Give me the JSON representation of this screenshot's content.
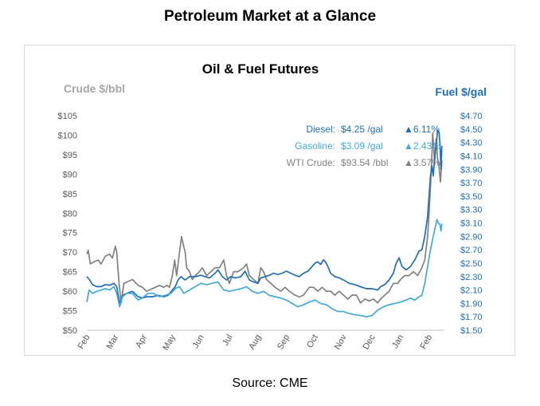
{
  "page": {
    "title": "Petroleum Market at a Glance",
    "source": "Source: CME"
  },
  "colors": {
    "crude": "#808080",
    "diesel": "#1f6eb5",
    "gasoline": "#41a9de",
    "axis": "#595959",
    "up_arrow_gray": "#808080"
  },
  "chart_data": {
    "type": "line",
    "title": "Oil & Fuel Futures",
    "left_axis": {
      "label": "Crude $/bbl",
      "min": 50,
      "max": 105,
      "step": 5,
      "ticks": [
        "$50",
        "$55",
        "$60",
        "$65",
        "$70",
        "$75",
        "$80",
        "$85",
        "$90",
        "$95",
        "$100",
        "$105"
      ]
    },
    "right_axis": {
      "label": "Fuel $/gal",
      "min": 1.5,
      "max": 4.7,
      "step": 0.2,
      "ticks": [
        "$1.50",
        "$1.70",
        "$1.90",
        "$2.10",
        "$2.30",
        "$2.50",
        "$2.70",
        "$2.90",
        "$3.10",
        "$3.30",
        "$3.50",
        "$3.70",
        "$3.90",
        "$4.10",
        "$4.30",
        "$4.50",
        "$4.70"
      ]
    },
    "x_axis": {
      "min": 0,
      "max": 12.4,
      "ticks": [
        {
          "label": "Feb",
          "month": 0
        },
        {
          "label": "Mar",
          "month": 1
        },
        {
          "label": "Apr",
          "month": 2
        },
        {
          "label": "May",
          "month": 3
        },
        {
          "label": "Jun",
          "month": 4
        },
        {
          "label": "Jul",
          "month": 5
        },
        {
          "label": "Aug",
          "month": 6
        },
        {
          "label": "Sep",
          "month": 7
        },
        {
          "label": "Oct",
          "month": 8
        },
        {
          "label": "Nov",
          "month": 9
        },
        {
          "label": "Dec",
          "month": 10
        },
        {
          "label": "Jan",
          "month": 11
        },
        {
          "label": "Feb",
          "month": 12
        }
      ]
    },
    "grid": false,
    "legend_position": "top-right",
    "annotations": [
      {
        "name": "Diesel:",
        "value": "$4.25 /gal",
        "change": "▲6.11%",
        "color": "#1f6eb5",
        "change_color": "#1f6eb5"
      },
      {
        "name": "Gasoline:",
        "value": "$3.09 /gal",
        "change": "▲2.43%",
        "color": "#41a9de",
        "change_color": "#41a9de"
      },
      {
        "name": "WTI Crude:",
        "value": "$93.54 /bbl",
        "change": "▲3.57%",
        "color": "#808080",
        "change_color": "#808080"
      }
    ],
    "series": [
      {
        "key": "crude",
        "axis": "left",
        "color": "#808080",
        "points": [
          [
            0,
            69.5
          ],
          [
            0.05,
            70.5
          ],
          [
            0.12,
            67
          ],
          [
            0.25,
            67.5
          ],
          [
            0.4,
            68
          ],
          [
            0.5,
            67
          ],
          [
            0.65,
            69
          ],
          [
            0.8,
            69.5
          ],
          [
            0.9,
            68.5
          ],
          [
            1.0,
            71.5
          ],
          [
            1.05,
            70
          ],
          [
            1.12,
            63
          ],
          [
            1.2,
            57
          ],
          [
            1.3,
            62
          ],
          [
            1.45,
            62.5
          ],
          [
            1.6,
            63
          ],
          [
            1.8,
            61.5
          ],
          [
            1.95,
            61
          ],
          [
            2.1,
            60
          ],
          [
            2.25,
            60.5
          ],
          [
            2.4,
            61
          ],
          [
            2.55,
            61.5
          ],
          [
            2.7,
            61
          ],
          [
            2.8,
            61.5
          ],
          [
            2.9,
            61
          ],
          [
            3.0,
            64
          ],
          [
            3.08,
            68
          ],
          [
            3.15,
            64
          ],
          [
            3.25,
            70
          ],
          [
            3.32,
            74
          ],
          [
            3.38,
            72
          ],
          [
            3.45,
            70
          ],
          [
            3.5,
            66
          ],
          [
            3.6,
            65
          ],
          [
            3.7,
            63
          ],
          [
            3.8,
            64
          ],
          [
            3.95,
            65
          ],
          [
            4.05,
            66
          ],
          [
            4.2,
            64
          ],
          [
            4.35,
            65
          ],
          [
            4.5,
            66
          ],
          [
            4.65,
            66
          ],
          [
            4.8,
            68
          ],
          [
            4.9,
            64
          ],
          [
            5.0,
            62
          ],
          [
            5.15,
            65
          ],
          [
            5.3,
            65
          ],
          [
            5.5,
            66
          ],
          [
            5.6,
            67
          ],
          [
            5.7,
            64
          ],
          [
            5.85,
            63
          ],
          [
            6.0,
            62
          ],
          [
            6.1,
            66
          ],
          [
            6.2,
            65
          ],
          [
            6.3,
            63
          ],
          [
            6.45,
            62
          ],
          [
            6.6,
            61
          ],
          [
            6.8,
            60
          ],
          [
            6.95,
            61
          ],
          [
            7.1,
            60
          ],
          [
            7.3,
            59
          ],
          [
            7.45,
            58.5
          ],
          [
            7.6,
            59
          ],
          [
            7.8,
            61
          ],
          [
            7.95,
            61
          ],
          [
            8.1,
            60
          ],
          [
            8.25,
            61
          ],
          [
            8.4,
            60
          ],
          [
            8.55,
            60
          ],
          [
            8.7,
            59
          ],
          [
            8.85,
            60
          ],
          [
            9.0,
            59
          ],
          [
            9.15,
            58
          ],
          [
            9.3,
            59
          ],
          [
            9.45,
            59
          ],
          [
            9.6,
            57
          ],
          [
            9.75,
            58
          ],
          [
            9.9,
            57.5
          ],
          [
            10.05,
            58
          ],
          [
            10.2,
            57
          ],
          [
            10.3,
            58
          ],
          [
            10.45,
            59
          ],
          [
            10.6,
            60
          ],
          [
            10.75,
            62
          ],
          [
            10.9,
            62
          ],
          [
            11.0,
            63
          ],
          [
            11.15,
            64
          ],
          [
            11.3,
            64
          ],
          [
            11.45,
            65
          ],
          [
            11.6,
            64
          ],
          [
            11.75,
            66
          ],
          [
            11.85,
            68
          ],
          [
            11.95,
            74
          ],
          [
            12.0,
            80
          ],
          [
            12.05,
            87
          ],
          [
            12.1,
            95
          ],
          [
            12.13,
            100.5
          ],
          [
            12.17,
            96
          ],
          [
            12.2,
            93
          ],
          [
            12.25,
            99
          ],
          [
            12.3,
            94
          ],
          [
            12.35,
            92
          ],
          [
            12.4,
            88
          ],
          [
            12.45,
            93.5
          ]
        ]
      },
      {
        "key": "diesel",
        "axis": "right",
        "color": "#1f6eb5",
        "points": [
          [
            0,
            2.3
          ],
          [
            0.1,
            2.25
          ],
          [
            0.2,
            2.18
          ],
          [
            0.35,
            2.15
          ],
          [
            0.5,
            2.15
          ],
          [
            0.65,
            2.18
          ],
          [
            0.8,
            2.17
          ],
          [
            0.95,
            2.2
          ],
          [
            1.05,
            2.15
          ],
          [
            1.15,
            1.9
          ],
          [
            1.25,
            2.02
          ],
          [
            1.4,
            2.05
          ],
          [
            1.6,
            2.08
          ],
          [
            1.8,
            2.0
          ],
          [
            1.95,
            1.98
          ],
          [
            2.1,
            2.0
          ],
          [
            2.3,
            2.0
          ],
          [
            2.5,
            2.02
          ],
          [
            2.7,
            2.0
          ],
          [
            2.85,
            2.02
          ],
          [
            3.0,
            2.1
          ],
          [
            3.1,
            2.15
          ],
          [
            3.2,
            2.25
          ],
          [
            3.3,
            2.3
          ],
          [
            3.45,
            2.25
          ],
          [
            3.6,
            2.3
          ],
          [
            3.8,
            2.3
          ],
          [
            4.0,
            2.32
          ],
          [
            4.15,
            2.3
          ],
          [
            4.3,
            2.28
          ],
          [
            4.5,
            2.35
          ],
          [
            4.6,
            2.4
          ],
          [
            4.75,
            2.3
          ],
          [
            4.9,
            2.25
          ],
          [
            5.05,
            2.3
          ],
          [
            5.2,
            2.28
          ],
          [
            5.4,
            2.3
          ],
          [
            5.55,
            2.38
          ],
          [
            5.7,
            2.25
          ],
          [
            5.85,
            2.22
          ],
          [
            6.0,
            2.2
          ],
          [
            6.1,
            2.28
          ],
          [
            6.25,
            2.3
          ],
          [
            6.4,
            2.32
          ],
          [
            6.55,
            2.35
          ],
          [
            6.7,
            2.33
          ],
          [
            6.85,
            2.35
          ],
          [
            7.0,
            2.38
          ],
          [
            7.15,
            2.35
          ],
          [
            7.3,
            2.32
          ],
          [
            7.45,
            2.3
          ],
          [
            7.6,
            2.35
          ],
          [
            7.75,
            2.38
          ],
          [
            7.9,
            2.45
          ],
          [
            8.0,
            2.5
          ],
          [
            8.1,
            2.52
          ],
          [
            8.2,
            2.48
          ],
          [
            8.3,
            2.55
          ],
          [
            8.4,
            2.5
          ],
          [
            8.55,
            2.35
          ],
          [
            8.7,
            2.3
          ],
          [
            8.85,
            2.28
          ],
          [
            9.0,
            2.25
          ],
          [
            9.2,
            2.2
          ],
          [
            9.4,
            2.18
          ],
          [
            9.6,
            2.15
          ],
          [
            9.8,
            2.12
          ],
          [
            10.0,
            2.12
          ],
          [
            10.2,
            2.1
          ],
          [
            10.3,
            2.15
          ],
          [
            10.45,
            2.18
          ],
          [
            10.6,
            2.25
          ],
          [
            10.75,
            2.35
          ],
          [
            10.85,
            2.5
          ],
          [
            10.95,
            2.58
          ],
          [
            11.05,
            2.45
          ],
          [
            11.2,
            2.4
          ],
          [
            11.35,
            2.45
          ],
          [
            11.5,
            2.55
          ],
          [
            11.65,
            2.68
          ],
          [
            11.75,
            2.7
          ],
          [
            11.85,
            2.9
          ],
          [
            11.95,
            3.2
          ],
          [
            12.0,
            3.5
          ],
          [
            12.05,
            3.8
          ],
          [
            12.1,
            3.95
          ],
          [
            12.15,
            3.8
          ],
          [
            12.2,
            4.1
          ],
          [
            12.25,
            4.25
          ],
          [
            12.3,
            4.48
          ],
          [
            12.35,
            4.45
          ],
          [
            12.38,
            4.3
          ],
          [
            12.42,
            3.9
          ],
          [
            12.45,
            4.25
          ]
        ]
      },
      {
        "key": "gasoline",
        "axis": "right",
        "color": "#41a9de",
        "points": [
          [
            0,
            1.92
          ],
          [
            0.08,
            2.1
          ],
          [
            0.2,
            2.05
          ],
          [
            0.35,
            2.08
          ],
          [
            0.5,
            2.1
          ],
          [
            0.65,
            2.12
          ],
          [
            0.8,
            2.1
          ],
          [
            0.95,
            2.15
          ],
          [
            1.05,
            2.05
          ],
          [
            1.15,
            1.85
          ],
          [
            1.25,
            2.0
          ],
          [
            1.4,
            2.05
          ],
          [
            1.6,
            2.05
          ],
          [
            1.8,
            1.95
          ],
          [
            1.95,
            1.98
          ],
          [
            2.15,
            2.05
          ],
          [
            2.35,
            2.05
          ],
          [
            2.55,
            2.0
          ],
          [
            2.75,
            2.02
          ],
          [
            2.95,
            2.05
          ],
          [
            3.1,
            2.12
          ],
          [
            3.25,
            2.15
          ],
          [
            3.4,
            2.05
          ],
          [
            3.6,
            2.1
          ],
          [
            3.8,
            2.15
          ],
          [
            4.0,
            2.2
          ],
          [
            4.2,
            2.18
          ],
          [
            4.4,
            2.2
          ],
          [
            4.6,
            2.22
          ],
          [
            4.8,
            2.1
          ],
          [
            5.0,
            2.08
          ],
          [
            5.2,
            2.1
          ],
          [
            5.4,
            2.12
          ],
          [
            5.6,
            2.15
          ],
          [
            5.8,
            2.08
          ],
          [
            6.0,
            2.05
          ],
          [
            6.2,
            2.08
          ],
          [
            6.4,
            2.02
          ],
          [
            6.6,
            2.0
          ],
          [
            6.8,
            1.98
          ],
          [
            7.0,
            1.95
          ],
          [
            7.2,
            1.9
          ],
          [
            7.4,
            1.85
          ],
          [
            7.6,
            1.88
          ],
          [
            7.8,
            1.92
          ],
          [
            8.0,
            1.95
          ],
          [
            8.2,
            1.9
          ],
          [
            8.4,
            1.88
          ],
          [
            8.6,
            1.82
          ],
          [
            8.8,
            1.78
          ],
          [
            9.0,
            1.78
          ],
          [
            9.2,
            1.75
          ],
          [
            9.4,
            1.73
          ],
          [
            9.6,
            1.72
          ],
          [
            9.8,
            1.7
          ],
          [
            10.0,
            1.72
          ],
          [
            10.2,
            1.8
          ],
          [
            10.4,
            1.85
          ],
          [
            10.6,
            1.88
          ],
          [
            10.8,
            1.9
          ],
          [
            11.0,
            1.92
          ],
          [
            11.2,
            1.95
          ],
          [
            11.35,
            1.98
          ],
          [
            11.5,
            1.95
          ],
          [
            11.65,
            2.0
          ],
          [
            11.75,
            2.02
          ],
          [
            11.85,
            2.2
          ],
          [
            11.95,
            2.45
          ],
          [
            12.05,
            2.7
          ],
          [
            12.15,
            2.9
          ],
          [
            12.2,
            3.0
          ],
          [
            12.28,
            3.15
          ],
          [
            12.32,
            3.1
          ],
          [
            12.38,
            3.08
          ],
          [
            12.42,
            2.98
          ],
          [
            12.45,
            3.09
          ]
        ]
      }
    ]
  }
}
